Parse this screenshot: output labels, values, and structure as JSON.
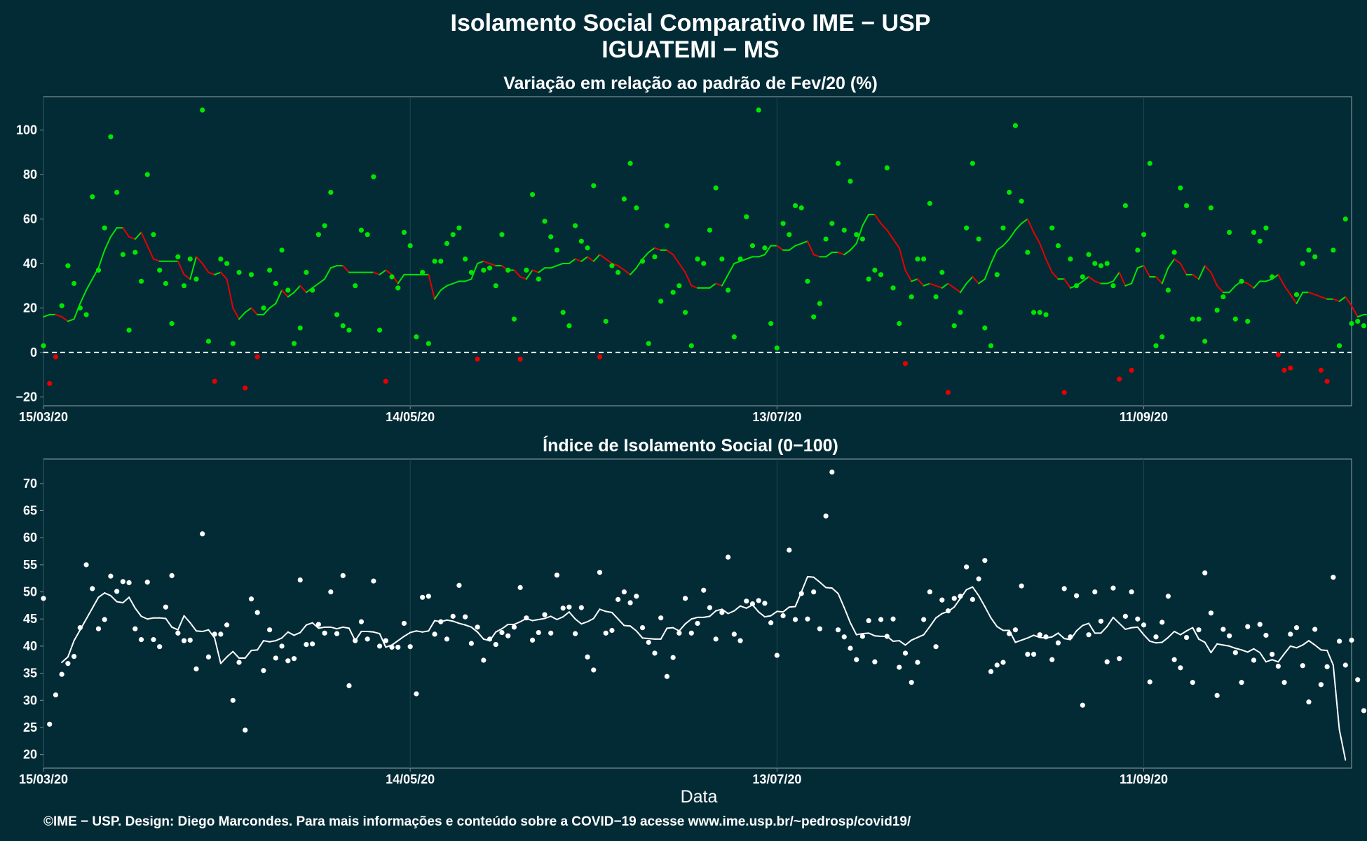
{
  "header": {
    "title_line1": "Isolamento Social Comparativo IME − USP",
    "title_line2": "IGUATEMI − MS"
  },
  "footer": {
    "credit": "©IME − USP. Design: Diego Marcondes. Para mais informações e conteúdo sobre a COVID−19 acesse www.ime.usp.br/~pedrosp/covid19/"
  },
  "colors": {
    "background": "#022b36",
    "positive": "#00e600",
    "negative": "#e60000",
    "index": "#ffffff",
    "grid": "#21444e",
    "frame": "#7f8f95"
  },
  "chart_data": [
    {
      "type": "scatter",
      "title": "Variação em relação ao padrão de Fev/20 (%)",
      "xlabel": "",
      "ylabel": "",
      "x_range": [
        "15/03/20",
        "15/10/20"
      ],
      "x_ticks": [
        "15/03/20",
        "14/05/20",
        "13/07/20",
        "11/09/20"
      ],
      "ylim": [
        -24,
        115
      ],
      "y_ticks": [
        -20,
        0,
        20,
        40,
        60,
        80,
        100
      ],
      "reference_line": 0,
      "grid": true,
      "series": [
        {
          "values": [
            3,
            -14,
            -2,
            21,
            39,
            31,
            20,
            17,
            70,
            37,
            56,
            97,
            72,
            44,
            10,
            45,
            32,
            80,
            53,
            37,
            31,
            13,
            43,
            30,
            42,
            33,
            109,
            5,
            -13,
            42,
            40,
            4,
            36,
            -16,
            35,
            -2,
            20,
            37,
            31,
            46,
            28,
            4,
            11,
            36,
            28,
            53,
            57,
            72,
            17,
            12,
            10,
            30,
            55,
            53,
            79,
            10,
            -13,
            34,
            29,
            54,
            48,
            7,
            36,
            4,
            41,
            41,
            49,
            53,
            56,
            42,
            36,
            -3,
            37,
            38,
            30,
            53,
            37,
            15,
            -3,
            37,
            71,
            33,
            59,
            52,
            46,
            18,
            12,
            57,
            50,
            47,
            75,
            -2,
            14,
            39,
            36,
            69,
            85,
            65,
            41,
            4,
            43,
            23,
            57,
            27,
            30,
            18,
            3,
            42,
            40,
            55,
            74,
            42,
            28,
            7,
            42,
            61,
            48,
            109,
            47,
            13,
            2,
            58,
            53,
            66,
            65,
            32,
            16,
            22,
            51,
            58,
            85,
            55,
            77,
            53,
            51,
            33,
            37,
            35,
            83,
            29,
            13,
            -5,
            25,
            42,
            42,
            67,
            25,
            36,
            -18,
            12,
            18,
            56,
            85,
            51,
            11,
            3,
            35,
            56,
            72,
            102,
            68,
            45,
            18,
            18,
            17,
            56,
            48,
            -18,
            42,
            30,
            34,
            44,
            40,
            39,
            40,
            30,
            -12,
            66,
            -8,
            46,
            53,
            85,
            3,
            7,
            28,
            45,
            74,
            66,
            15,
            15,
            5,
            65,
            19,
            25,
            54,
            15,
            32,
            14,
            54,
            50,
            56,
            34,
            -1,
            -8,
            -7,
            26,
            40,
            46,
            43,
            -8,
            -13,
            46,
            3,
            60,
            13,
            14,
            12,
            35,
            14,
            42,
            25,
            -4,
            14
          ]
        },
        {
          "values": [
            16,
            17,
            17,
            16,
            14,
            15,
            22,
            28,
            33,
            38,
            46,
            52,
            56,
            56,
            52,
            51,
            54,
            48,
            42,
            41,
            41,
            41,
            41,
            35,
            33,
            43,
            40,
            36,
            35,
            36,
            33,
            20,
            15,
            18,
            20,
            17,
            17,
            20,
            22,
            28,
            25,
            27,
            30,
            27,
            29,
            31,
            33,
            38,
            39,
            39,
            36,
            36,
            36,
            36,
            36,
            35,
            37,
            35,
            31,
            35,
            35,
            35,
            35,
            35,
            24,
            28,
            30,
            31,
            32,
            32,
            33,
            40,
            41,
            40,
            39,
            39,
            37,
            37,
            34,
            33,
            37,
            36,
            38,
            38,
            39,
            40,
            40,
            42,
            41,
            43,
            41,
            44,
            42,
            40,
            39,
            37,
            35,
            38,
            42,
            45,
            47,
            46,
            46,
            44,
            40,
            36,
            30,
            29,
            29,
            29,
            31,
            30,
            35,
            40,
            41,
            42,
            43,
            43,
            44,
            48,
            48,
            46,
            46,
            48,
            49,
            50,
            44,
            43,
            43,
            45,
            45,
            44,
            46,
            49,
            57,
            62,
            62,
            58,
            55,
            51,
            47,
            37,
            32,
            33,
            30,
            31,
            30,
            29,
            31,
            29,
            27,
            31,
            34,
            31,
            33,
            40,
            46,
            48,
            51,
            55,
            58,
            60,
            54,
            49,
            42,
            36,
            33,
            33,
            29,
            30,
            32,
            34,
            32,
            31,
            31,
            32,
            36,
            30,
            31,
            38,
            39,
            34,
            34,
            31,
            38,
            42,
            40,
            35,
            35,
            33,
            39,
            36,
            30,
            27,
            27,
            30,
            32,
            31,
            29,
            32,
            32,
            33,
            35,
            30,
            26,
            22,
            27,
            27,
            26,
            25,
            24,
            24,
            23,
            25,
            21,
            16,
            17,
            17,
            20,
            23,
            22,
            22,
            27,
            23,
            20,
            20
          ]
        }
      ]
    },
    {
      "type": "scatter",
      "title": "Índice de Isolamento Social (0−100)",
      "xlabel": "Data",
      "ylabel": "",
      "x_range": [
        "15/03/20",
        "15/10/20"
      ],
      "x_ticks": [
        "15/03/20",
        "14/05/20",
        "13/07/20",
        "11/09/20"
      ],
      "ylim": [
        17.5,
        74.5
      ],
      "y_ticks": [
        20,
        25,
        30,
        35,
        40,
        45,
        50,
        55,
        60,
        65,
        70
      ],
      "grid": true,
      "series": [
        {
          "values": [
            48.8,
            25.6,
            31,
            34.8,
            36.8,
            38.1,
            43.4,
            55,
            50.6,
            43.2,
            44.9,
            52.9,
            50.1,
            51.9,
            51.7,
            43.2,
            41.2,
            51.8,
            41.2,
            39.9,
            47.2,
            53,
            42.4,
            41,
            41.1,
            35.8,
            60.7,
            38,
            42.2,
            42.2,
            43.9,
            30,
            37,
            24.5,
            48.7,
            46.2,
            35.5,
            43,
            37.8,
            40,
            37.3,
            37.7,
            52.2,
            40.3,
            40.4,
            44,
            42.4,
            50,
            42.3,
            53,
            32.7,
            41,
            44.5,
            41.3,
            52,
            40,
            41,
            39.8,
            39.8,
            44.2,
            39.9,
            31.2,
            49,
            49.2,
            42.2,
            44.5,
            41.3,
            45.5,
            51.2,
            45.4,
            40.5,
            43.5,
            37.4,
            41.3,
            40.3,
            42.5,
            41.9,
            43.5,
            50.8,
            45.2,
            41.1,
            42.5,
            45.8,
            42.4,
            53.1,
            47,
            47.2,
            42.3,
            47.1,
            38,
            35.6,
            53.6,
            42.4,
            42.9,
            48.6,
            50,
            48,
            49.2,
            43.4,
            40.7,
            38.7,
            45.2,
            34.4,
            37.9,
            42.4,
            48.8,
            42.4,
            44.2,
            50.3,
            47.1,
            41.3,
            46.2,
            56.4,
            42.2,
            41,
            48.3,
            47.8,
            48.4,
            47.9,
            44.3,
            38.3,
            45.6,
            57.7,
            44.9,
            49.7,
            45,
            50,
            43.2,
            64,
            72.1,
            43,
            41.7,
            39.6,
            37.5,
            41.8,
            44.7,
            37.1,
            44.9,
            41.8,
            45,
            36.1,
            38.7,
            33.3,
            37,
            44.9,
            50,
            39.9,
            48.5,
            46.5,
            48.8,
            49.2,
            54.6,
            48.6,
            52.4,
            55.8,
            35.3,
            36.5,
            37,
            42.3,
            43,
            51.1,
            38.5,
            38.5,
            42.1,
            41.7,
            37.5,
            40.6,
            50.6,
            41.7,
            49.3,
            29.1,
            42.1,
            50,
            44.6,
            37.1,
            50.7,
            37.7,
            45.5,
            50,
            45,
            43.9,
            33.4,
            41.7,
            44.4,
            49.2,
            37.5,
            36,
            41.6,
            33.3,
            43,
            53.5,
            46.1,
            30.9,
            43.1,
            41.9,
            38.8,
            33.3,
            43.6,
            37.4,
            44,
            42,
            38.5,
            36.3,
            33.3,
            42.2,
            43.4,
            36.4,
            29.7,
            43.1,
            32.9,
            36.2,
            52.7,
            40.9,
            36.5,
            41.1,
            33.8,
            28.1,
            41.1
          ]
        },
        {
          "values": [
            null,
            null,
            null,
            37,
            38,
            41,
            43,
            45,
            47,
            49,
            49.8,
            49.3,
            48.2,
            48,
            49,
            47,
            45.5,
            45,
            45.2,
            45.2,
            45.1,
            43.5,
            43,
            45.6,
            44.3,
            42.8,
            42.7,
            43,
            41.5,
            36.8,
            38,
            39,
            37.8,
            37.8,
            39.2,
            39.3,
            41,
            40.8,
            41,
            41.5,
            42.6,
            42,
            42.5,
            43.9,
            44.3,
            43.3,
            43.5,
            43.5,
            43.2,
            43.5,
            43.3,
            41,
            42.7,
            42.7,
            42.6,
            42.3,
            39.8,
            40.2,
            41,
            41.8,
            42.5,
            42.8,
            42.6,
            42.8,
            44.7,
            44.5,
            44.8,
            44.6,
            44.2,
            43.9,
            43.5,
            42.6,
            41.3,
            41,
            42.6,
            43.2,
            44,
            44,
            44.5,
            45.1,
            44.7,
            44.9,
            45.1,
            45.5,
            44.9,
            45.4,
            46.3,
            45,
            44.1,
            44.5,
            45.1,
            46.8,
            46.4,
            46.2,
            45,
            43.8,
            43.7,
            42.8,
            41.5,
            41.4,
            41.3,
            41.3,
            43.3,
            43.4,
            42.8,
            44.1,
            45,
            45.3,
            45.3,
            45.5,
            46.5,
            46.8,
            46,
            46.5,
            47.4,
            47,
            47.6,
            46.3,
            45.4,
            45.6,
            46.4,
            46.3,
            47.2,
            47.3,
            50,
            52.8,
            52.7,
            51.8,
            50.8,
            50.7,
            49.7,
            47.1,
            44.3,
            42.1,
            42.3,
            42.4,
            41.9,
            41.8,
            41.8,
            40.9,
            41,
            40.2,
            41.1,
            41.6,
            42.1,
            43.6,
            45.2,
            46,
            46.4,
            47.2,
            48.8,
            50.4,
            50.9,
            49.3,
            47.3,
            45.2,
            43.6,
            42.9,
            42.9,
            40.7,
            41.1,
            41.5,
            42,
            41.6,
            41.5,
            41.7,
            42.4,
            41.4,
            41.2,
            42.8,
            43.8,
            44.2,
            42.4,
            42.4,
            43.6,
            45.3,
            44.2,
            43.1,
            43.4,
            43.5,
            42.1,
            40.9,
            40.6,
            40.7,
            41.6,
            42.7,
            42.1,
            42.8,
            43.4,
            41.3,
            40.7,
            38.8,
            40.4,
            40.2,
            40,
            39.6,
            39.3,
            38.9,
            39.5,
            38.8,
            37.1,
            37.5,
            37.1,
            38.6,
            40,
            39.7,
            40.2,
            41,
            40.2,
            39.3,
            39.2,
            36.5,
            24.6,
            19
          ]
        }
      ]
    }
  ]
}
